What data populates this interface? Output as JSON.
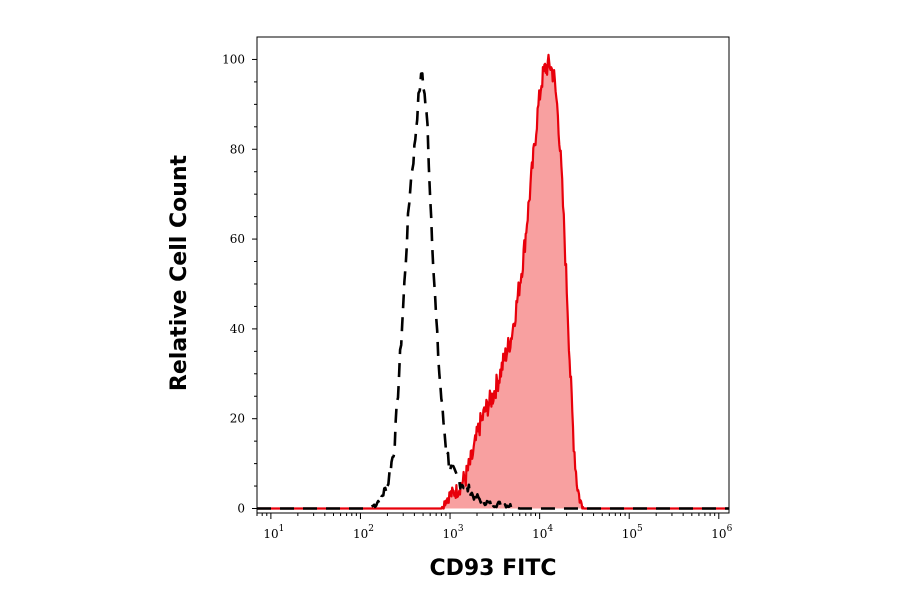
{
  "chart_data": {
    "type": "area",
    "xlabel": "CD93 FITC",
    "ylabel": "Relative Cell Count",
    "x_scale": "log",
    "xlim": [
      7,
      1300000
    ],
    "ylim": [
      -1,
      105
    ],
    "x_ticks": [
      {
        "base": "10",
        "exp": "1",
        "value": 10
      },
      {
        "base": "10",
        "exp": "2",
        "value": 100
      },
      {
        "base": "10",
        "exp": "3",
        "value": 1000
      },
      {
        "base": "10",
        "exp": "4",
        "value": 10000
      },
      {
        "base": "10",
        "exp": "5",
        "value": 100000
      },
      {
        "base": "10",
        "exp": "6",
        "value": 1000000
      }
    ],
    "y_ticks": [
      "0",
      "20",
      "40",
      "60",
      "80",
      "100"
    ],
    "y_tick_values": [
      0,
      20,
      40,
      60,
      80,
      100
    ],
    "grid": false,
    "series": [
      {
        "style": "dashed-black-outline",
        "color": "#000000",
        "points": [
          [
            7,
            0
          ],
          [
            120,
            0
          ],
          [
            150,
            1
          ],
          [
            175,
            3
          ],
          [
            200,
            5
          ],
          [
            240,
            14
          ],
          [
            270,
            30
          ],
          [
            300,
            45
          ],
          [
            330,
            60
          ],
          [
            360,
            72
          ],
          [
            400,
            80
          ],
          [
            430,
            88
          ],
          [
            460,
            94
          ],
          [
            490,
            97
          ],
          [
            520,
            92
          ],
          [
            560,
            85
          ],
          [
            600,
            70
          ],
          [
            650,
            55
          ],
          [
            700,
            42
          ],
          [
            760,
            30
          ],
          [
            820,
            22
          ],
          [
            900,
            14
          ],
          [
            1000,
            9
          ],
          [
            1150,
            7
          ],
          [
            1300,
            6
          ],
          [
            1500,
            5
          ],
          [
            1800,
            3
          ],
          [
            2200,
            2
          ],
          [
            2800,
            1
          ],
          [
            4000,
            1
          ],
          [
            6000,
            0
          ],
          [
            1300000,
            0
          ]
        ]
      },
      {
        "style": "red-filled",
        "color": "#e8000b",
        "fill": "#f8a0a0",
        "points": [
          [
            7,
            0
          ],
          [
            800,
            0
          ],
          [
            900,
            2
          ],
          [
            1000,
            3
          ],
          [
            1200,
            4
          ],
          [
            1500,
            7
          ],
          [
            1800,
            12
          ],
          [
            2100,
            18
          ],
          [
            2500,
            22
          ],
          [
            3000,
            25
          ],
          [
            3500,
            29
          ],
          [
            4000,
            33
          ],
          [
            4800,
            38
          ],
          [
            5500,
            45
          ],
          [
            6500,
            55
          ],
          [
            7500,
            67
          ],
          [
            8500,
            78
          ],
          [
            9500,
            88
          ],
          [
            10500,
            95
          ],
          [
            11500,
            98
          ],
          [
            13000,
            99
          ],
          [
            14500,
            96
          ],
          [
            16000,
            88
          ],
          [
            17500,
            75
          ],
          [
            19000,
            60
          ],
          [
            20500,
            45
          ],
          [
            22000,
            30
          ],
          [
            24000,
            15
          ],
          [
            26000,
            6
          ],
          [
            28000,
            2
          ],
          [
            31000,
            0
          ],
          [
            1300000,
            0
          ]
        ]
      }
    ]
  }
}
